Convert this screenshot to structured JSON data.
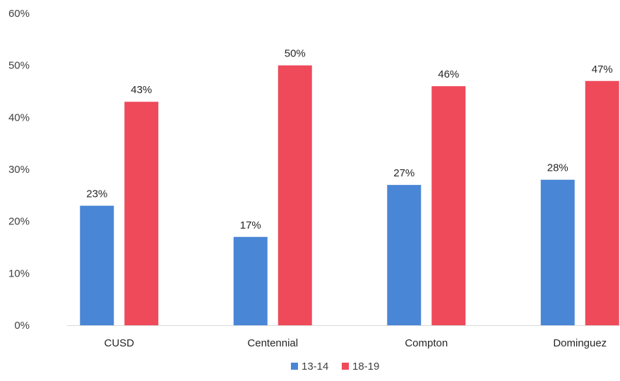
{
  "chart_data": {
    "type": "bar",
    "categories": [
      "CUSD",
      "Centennial",
      "Compton",
      "Dominguez"
    ],
    "series": [
      {
        "name": "13-14",
        "values": [
          23,
          17,
          27,
          28
        ],
        "labels": [
          "23%",
          "17%",
          "27%",
          "28%"
        ],
        "color": "#4a86d6"
      },
      {
        "name": "18-19",
        "values": [
          43,
          50,
          46,
          47
        ],
        "labels": [
          "43%",
          "50%",
          "46%",
          "47%"
        ],
        "color": "#ee4a5a"
      }
    ],
    "ylim": [
      0,
      60
    ],
    "yticks": [
      0,
      10,
      20,
      30,
      40,
      50,
      60
    ],
    "ytick_labels": [
      "0%",
      "10%",
      "20%",
      "30%",
      "40%",
      "50%",
      "60%"
    ],
    "grid": false,
    "legend": "bottom"
  }
}
